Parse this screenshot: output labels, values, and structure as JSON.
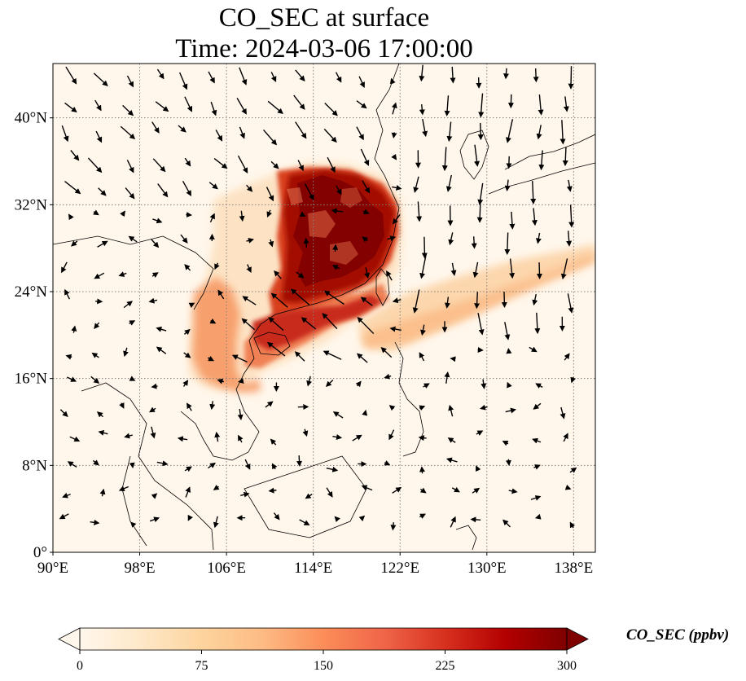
{
  "title_line1": "CO_SEC at surface",
  "title_line2": "Time: 2024-03-06 17:00:00",
  "map": {
    "projection": "lat-lon (PlateCarree)",
    "lon_range": [
      90,
      140
    ],
    "lat_range": [
      0,
      45
    ],
    "lon_ticks": [
      {
        "value": 90,
        "label": "90°E"
      },
      {
        "value": 98,
        "label": "98°E"
      },
      {
        "value": 106,
        "label": "106°E"
      },
      {
        "value": 114,
        "label": "114°E"
      },
      {
        "value": 122,
        "label": "122°E"
      },
      {
        "value": 130,
        "label": "130°E"
      },
      {
        "value": 138,
        "label": "138°E"
      }
    ],
    "lat_ticks": [
      {
        "value": 0,
        "label": "0°"
      },
      {
        "value": 8,
        "label": "8°N"
      },
      {
        "value": 16,
        "label": "16°N"
      },
      {
        "value": 24,
        "label": "24°N"
      },
      {
        "value": 32,
        "label": "32°N"
      },
      {
        "value": 40,
        "label": "40°N"
      }
    ],
    "gridlines": "dotted grey",
    "colormap": "OrRd",
    "high_concentration_region": "eastern and southern China, Hainan and Gulf of Tonkin",
    "outflow_plume": "extends east over Taiwan toward the western Pacific near 20–27°N"
  },
  "colorbar": {
    "label": "CO_SEC (ppbv)",
    "range": [
      0,
      300
    ],
    "extend": "both",
    "ticks": [
      {
        "value": 0,
        "label": "0"
      },
      {
        "value": 75,
        "label": "75"
      },
      {
        "value": 150,
        "label": "150"
      },
      {
        "value": 225,
        "label": "225"
      },
      {
        "value": 300,
        "label": "300"
      }
    ],
    "colors": [
      "#fff7ec",
      "#fee8c8",
      "#fdd49e",
      "#fdbb84",
      "#fc8d59",
      "#ef6548",
      "#d7301f",
      "#b30000",
      "#7f0000"
    ]
  }
}
